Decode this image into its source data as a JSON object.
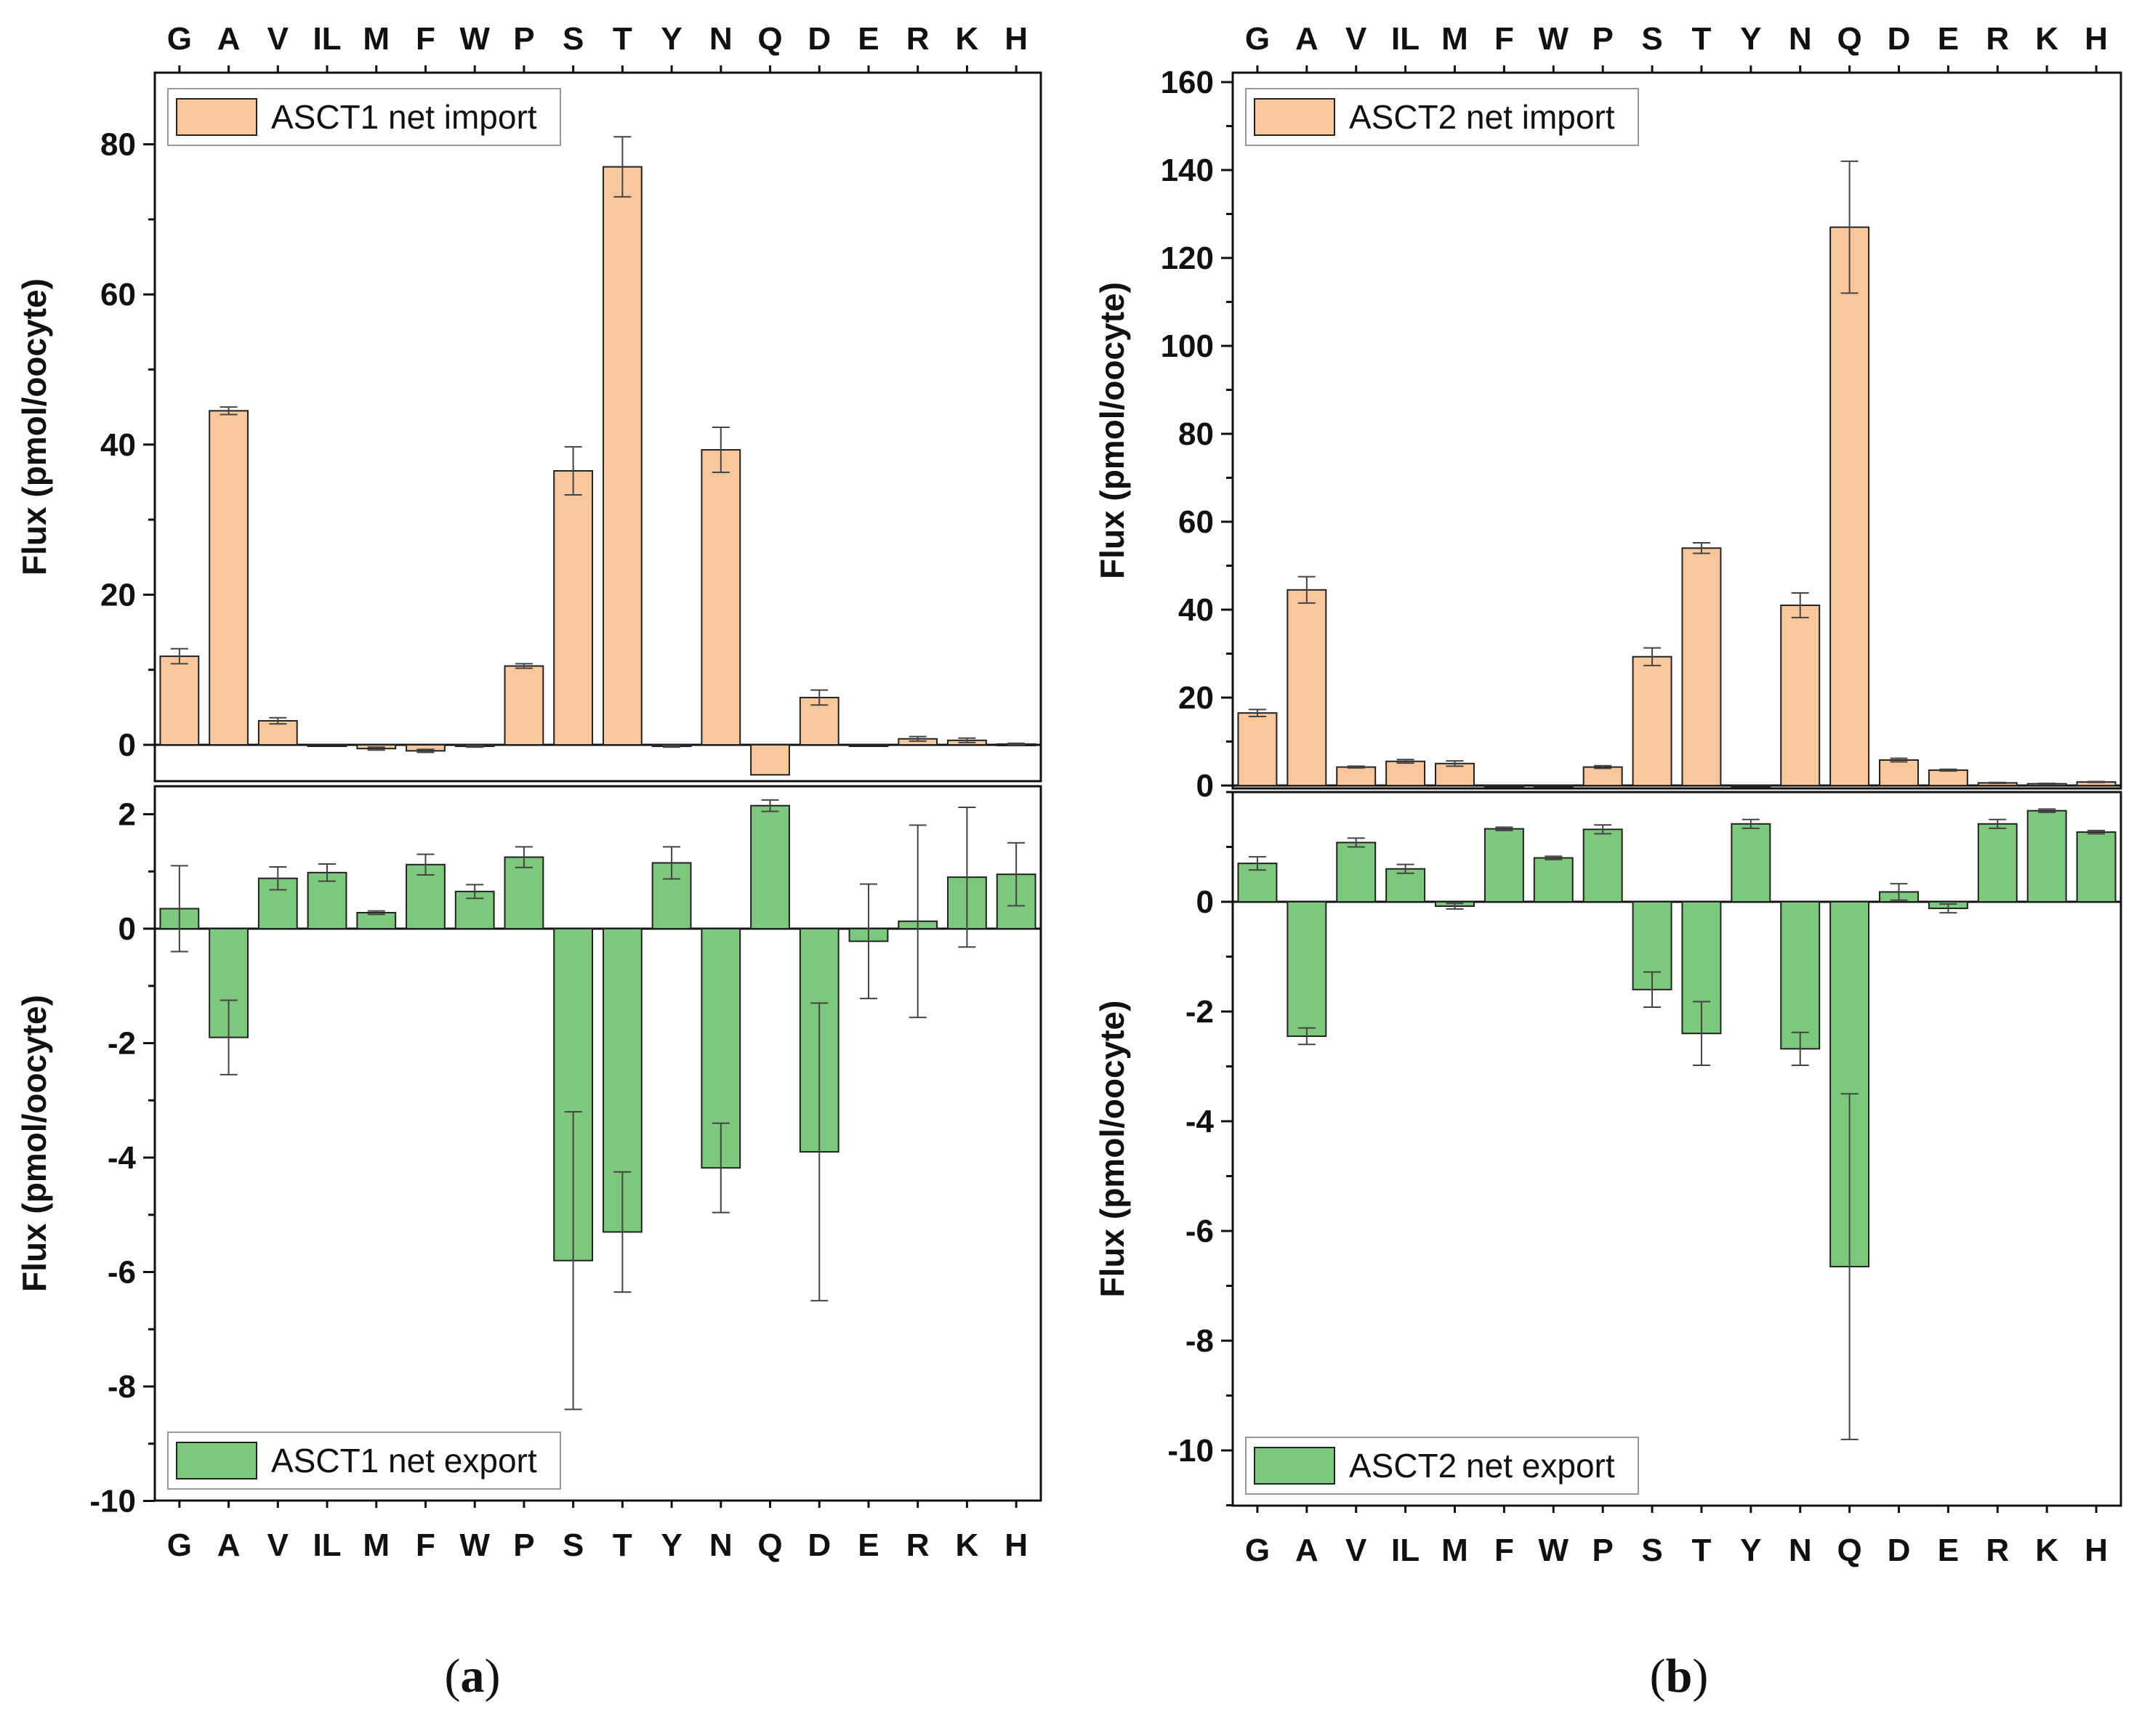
{
  "colors": {
    "import_fill": "#f9c79c",
    "export_fill": "#7cc87c",
    "bar_stroke": "#222222",
    "error_stroke": "#444444",
    "axis_stroke": "#111111"
  },
  "chart_data": [
    {
      "id": "a",
      "type": "bar",
      "categories": [
        "G",
        "A",
        "V",
        "IL",
        "M",
        "F",
        "W",
        "P",
        "S",
        "T",
        "Y",
        "N",
        "Q",
        "D",
        "E",
        "R",
        "K",
        "H"
      ],
      "panel_label": {
        "open": "(",
        "letter": "a",
        "close": ")"
      },
      "subplots": [
        {
          "position": "top",
          "ylabel": "Flux (pmol/oocyte)",
          "ylim": [
            -5,
            90
          ],
          "yticks": [
            0,
            20,
            40,
            60,
            80
          ],
          "yticklabels": [
            "0",
            "20",
            "40",
            "60",
            "80"
          ],
          "minor_step": 10,
          "category_labels": "top",
          "legend": {
            "label": "ASCT1 net import",
            "placement": "top-left"
          },
          "series": [
            {
              "name": "ASCT1 net import",
              "values": [
                11.8,
                44.5,
                3.2,
                0,
                -0.5,
                -0.8,
                -0.2,
                10.5,
                36.5,
                77,
                -0.2,
                39.3,
                -4,
                6.3,
                0,
                0.8,
                0.6,
                0.1
              ],
              "errors": [
                1.0,
                0.5,
                0.4,
                0,
                0.2,
                0.2,
                0.1,
                0.3,
                3.2,
                4.0,
                0.1,
                3.0,
                0,
                1.0,
                0,
                0.3,
                0.3,
                0.1
              ]
            }
          ]
        },
        {
          "position": "bottom",
          "ylabel": "Flux (pmol/oocyte)",
          "ylim": [
            -10,
            2.5
          ],
          "yticks": [
            -10,
            -8,
            -6,
            -4,
            -2,
            0,
            2
          ],
          "yticklabels": [
            "-10",
            "-8",
            "-6",
            "-4",
            "-2",
            "0",
            "2"
          ],
          "minor_step": 1,
          "category_labels": "bottom",
          "legend": {
            "label": "ASCT1 net export",
            "placement": "bottom-left"
          },
          "series": [
            {
              "name": "ASCT1 net export",
              "values": [
                0.35,
                -1.9,
                0.88,
                0.98,
                0.28,
                1.12,
                0.65,
                1.25,
                -5.8,
                -5.3,
                1.15,
                -4.18,
                2.15,
                -3.9,
                -0.22,
                0.13,
                0.9,
                0.95
              ],
              "errors": [
                0.75,
                0.65,
                0.2,
                0.15,
                0.03,
                0.18,
                0.12,
                0.18,
                2.6,
                1.05,
                0.28,
                0.78,
                0.1,
                2.6,
                1.0,
                1.68,
                1.22,
                0.55
              ]
            }
          ]
        }
      ]
    },
    {
      "id": "b",
      "type": "bar",
      "categories": [
        "G",
        "A",
        "V",
        "IL",
        "M",
        "F",
        "W",
        "P",
        "S",
        "T",
        "Y",
        "N",
        "Q",
        "D",
        "E",
        "R",
        "K",
        "H"
      ],
      "panel_label": {
        "open": "(",
        "letter": "b",
        "close": ")"
      },
      "subplots": [
        {
          "position": "top",
          "ylabel": "Flux (pmol/oocyte)",
          "ylim": [
            0,
            160
          ],
          "yticks": [
            0,
            20,
            40,
            60,
            80,
            100,
            120,
            140,
            160
          ],
          "yticklabels": [
            "0",
            "20",
            "40",
            "60",
            "80",
            "100",
            "120",
            "140",
            "160"
          ],
          "minor_step": 10,
          "category_labels": "top",
          "legend": {
            "label": "ASCT2 net import",
            "placement": "top-left"
          },
          "series": [
            {
              "name": "ASCT2 net import",
              "values": [
                16.5,
                44.5,
                4.2,
                5.5,
                5.0,
                0,
                0,
                4.2,
                29.3,
                54,
                0,
                41,
                127,
                5.8,
                3.5,
                0.6,
                0.4,
                0.8
              ],
              "errors": [
                0.8,
                3.0,
                0.2,
                0.4,
                0.6,
                0,
                0,
                0.3,
                2.0,
                1.2,
                0,
                2.8,
                15,
                0.4,
                0.2,
                0.1,
                0.1,
                0.1
              ]
            }
          ]
        },
        {
          "position": "bottom",
          "ylabel": "Flux (pmol/oocyte)",
          "ylim": [
            -11,
            2
          ],
          "yticks": [
            -10,
            -8,
            -6,
            -4,
            -2,
            0
          ],
          "yticklabels": [
            "-10",
            "-8",
            "-6",
            "-4",
            "-2",
            "0"
          ],
          "minor_step": 1,
          "category_labels": "bottom",
          "legend": {
            "label": "ASCT2 net export",
            "placement": "bottom-left"
          },
          "series": [
            {
              "name": "ASCT2 net export",
              "values": [
                0.7,
                -2.45,
                1.08,
                0.6,
                -0.08,
                1.33,
                0.8,
                1.32,
                -1.6,
                -2.4,
                1.42,
                -2.68,
                -6.65,
                0.18,
                -0.12,
                1.42,
                1.66,
                1.27
              ],
              "errors": [
                0.12,
                0.15,
                0.08,
                0.08,
                0.05,
                0.03,
                0.03,
                0.08,
                0.32,
                0.58,
                0.08,
                0.3,
                3.15,
                0.15,
                0.08,
                0.08,
                0.03,
                0.03
              ]
            }
          ]
        }
      ]
    }
  ]
}
